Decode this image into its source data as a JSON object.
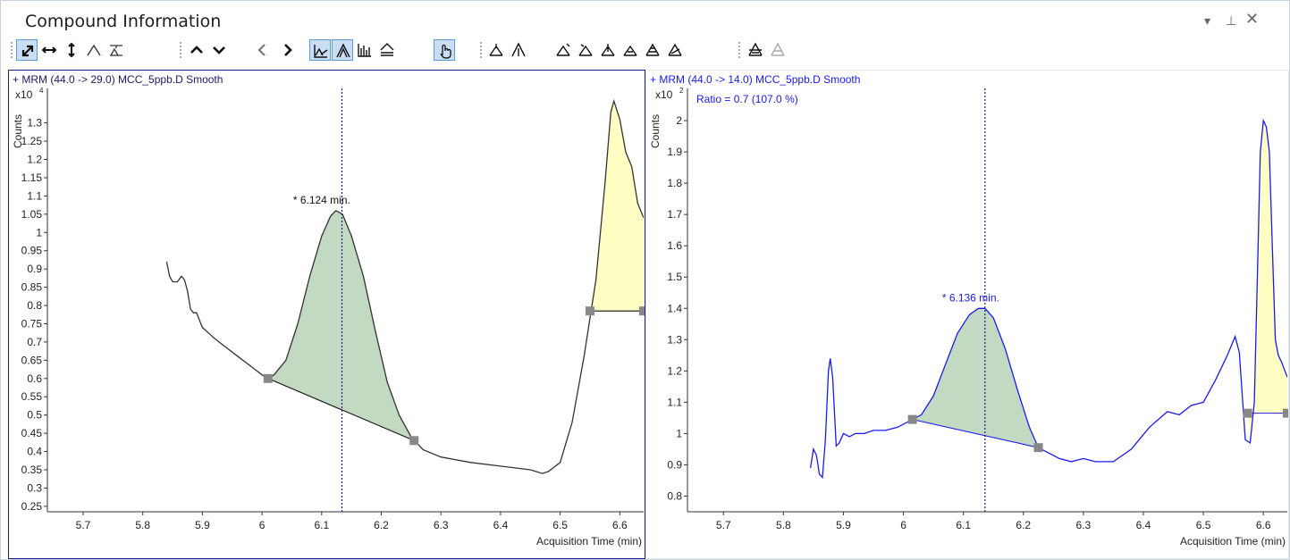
{
  "window": {
    "title": "Compound Information",
    "menu_icon": "dropdown-arrow-icon",
    "pin_icon": "pin-icon",
    "close_icon": "close-icon"
  },
  "toolbar": {
    "groups": [
      [
        "autoscale-both-icon",
        "autoscale-x-icon",
        "autoscale-y-icon",
        "peak-icon",
        "baseline-icon"
      ],
      [
        "previous-compound-icon",
        "next-compound-icon",
        "previous-peak-icon",
        "next-peak-icon",
        "integrate-icon",
        "overlay-peaks-icon",
        "spectrum-icon",
        "compare-icon",
        "manual-mode-icon"
      ],
      [
        "zero-peak-icon",
        "pick-peak-icon",
        "integrate-peak-icon",
        "split-peak-icon",
        "merge-peak-icon",
        "drop-peak-icon",
        "skim-peak-icon",
        "tangent-peak-icon"
      ],
      [
        "restore-icon",
        "delete-icon"
      ]
    ],
    "active": [
      "autoscale-both-icon",
      "integrate-icon",
      "overlay-peaks-icon",
      "manual-mode-icon"
    ]
  },
  "chart_data": [
    {
      "type": "line",
      "header": "+ MRM (44.0 -> 29.0) MCC_5ppb.D  Smooth",
      "ylabel": "Counts",
      "multiplier": "x10",
      "multiplier_exp": "4",
      "xlabel": "Acquisition Time (min)",
      "xlim": [
        5.64,
        6.64
      ],
      "xticks": [
        "5.7",
        "5.8",
        "5.9",
        "6",
        "6.1",
        "6.2",
        "6.3",
        "6.4",
        "6.5",
        "6.6"
      ],
      "ylim": [
        0.235,
        1.375
      ],
      "yticks": [
        "0.25",
        "0.3",
        "0.35",
        "0.4",
        "0.45",
        "0.5",
        "0.55",
        "0.6",
        "0.65",
        "0.7",
        "0.75",
        "0.8",
        "0.85",
        "0.9",
        "0.95",
        "1",
        "1.05",
        "1.1",
        "1.15",
        "1.2",
        "1.25",
        "1.3"
      ],
      "color": "#333333",
      "points": [
        [
          5.84,
          0.92
        ],
        [
          5.845,
          0.88
        ],
        [
          5.85,
          0.865
        ],
        [
          5.858,
          0.865
        ],
        [
          5.865,
          0.88
        ],
        [
          5.87,
          0.87
        ],
        [
          5.875,
          0.84
        ],
        [
          5.88,
          0.79
        ],
        [
          5.885,
          0.78
        ],
        [
          5.89,
          0.78
        ],
        [
          5.895,
          0.76
        ],
        [
          5.9,
          0.74
        ],
        [
          5.92,
          0.71
        ],
        [
          5.94,
          0.685
        ],
        [
          5.96,
          0.66
        ],
        [
          5.98,
          0.635
        ],
        [
          6.0,
          0.61
        ],
        [
          6.01,
          0.6
        ],
        [
          6.02,
          0.61
        ],
        [
          6.04,
          0.65
        ],
        [
          6.06,
          0.75
        ],
        [
          6.08,
          0.88
        ],
        [
          6.1,
          0.99
        ],
        [
          6.115,
          1.045
        ],
        [
          6.124,
          1.06
        ],
        [
          6.135,
          1.05
        ],
        [
          6.15,
          0.99
        ],
        [
          6.17,
          0.88
        ],
        [
          6.19,
          0.73
        ],
        [
          6.21,
          0.59
        ],
        [
          6.23,
          0.5
        ],
        [
          6.25,
          0.44
        ],
        [
          6.27,
          0.405
        ],
        [
          6.3,
          0.385
        ],
        [
          6.35,
          0.37
        ],
        [
          6.4,
          0.36
        ],
        [
          6.45,
          0.35
        ],
        [
          6.47,
          0.34
        ],
        [
          6.48,
          0.345
        ],
        [
          6.5,
          0.37
        ],
        [
          6.52,
          0.48
        ],
        [
          6.54,
          0.66
        ],
        [
          6.56,
          0.87
        ],
        [
          6.575,
          1.13
        ],
        [
          6.585,
          1.33
        ],
        [
          6.59,
          1.36
        ],
        [
          6.6,
          1.31
        ],
        [
          6.61,
          1.22
        ],
        [
          6.62,
          1.18
        ],
        [
          6.63,
          1.08
        ],
        [
          6.64,
          1.04
        ]
      ],
      "peaks": [
        {
          "start": [
            6.01,
            0.6
          ],
          "end": [
            6.255,
            0.43
          ],
          "fill": "#c2d9c2",
          "label": "* 6.124 min.",
          "apex_rt": 6.124,
          "apex_y": 1.06
        },
        {
          "start": [
            6.55,
            0.785
          ],
          "end": [
            6.64,
            0.785
          ],
          "fill": "#ffffc4"
        }
      ],
      "marker_rt": 6.134
    },
    {
      "type": "line",
      "header": "+ MRM (44.0 -> 14.0) MCC_5ppb.D  Smooth",
      "annotation": "Ratio = 0.7 (107.0 %)",
      "ylabel": "Counts",
      "multiplier": "x10",
      "multiplier_exp": "2",
      "xlabel": "Acquisition Time (min)",
      "xlim": [
        5.64,
        6.64
      ],
      "xticks": [
        "5.7",
        "5.8",
        "5.9",
        "6",
        "6.1",
        "6.2",
        "6.3",
        "6.4",
        "6.5",
        "6.6"
      ],
      "ylim": [
        0.75,
        2.08
      ],
      "yticks": [
        "0.8",
        "0.9",
        "1",
        "1.1",
        "1.2",
        "1.3",
        "1.4",
        "1.5",
        "1.6",
        "1.7",
        "1.8",
        "1.9",
        "2"
      ],
      "color": "#1a1aee",
      "points": [
        [
          5.845,
          0.89
        ],
        [
          5.85,
          0.95
        ],
        [
          5.855,
          0.93
        ],
        [
          5.86,
          0.87
        ],
        [
          5.865,
          0.86
        ],
        [
          5.87,
          0.98
        ],
        [
          5.875,
          1.2
        ],
        [
          5.878,
          1.24
        ],
        [
          5.882,
          1.18
        ],
        [
          5.888,
          0.96
        ],
        [
          5.893,
          0.97
        ],
        [
          5.9,
          1.0
        ],
        [
          5.91,
          0.99
        ],
        [
          5.92,
          1.0
        ],
        [
          5.935,
          1.0
        ],
        [
          5.95,
          1.01
        ],
        [
          5.97,
          1.01
        ],
        [
          5.99,
          1.02
        ],
        [
          6.01,
          1.04
        ],
        [
          6.015,
          1.045
        ],
        [
          6.03,
          1.06
        ],
        [
          6.05,
          1.12
        ],
        [
          6.07,
          1.22
        ],
        [
          6.09,
          1.32
        ],
        [
          6.11,
          1.38
        ],
        [
          6.125,
          1.4
        ],
        [
          6.136,
          1.4
        ],
        [
          6.15,
          1.37
        ],
        [
          6.17,
          1.27
        ],
        [
          6.19,
          1.14
        ],
        [
          6.21,
          1.02
        ],
        [
          6.225,
          0.955
        ],
        [
          6.24,
          0.94
        ],
        [
          6.26,
          0.92
        ],
        [
          6.28,
          0.91
        ],
        [
          6.3,
          0.92
        ],
        [
          6.32,
          0.91
        ],
        [
          6.35,
          0.91
        ],
        [
          6.38,
          0.95
        ],
        [
          6.41,
          1.02
        ],
        [
          6.44,
          1.07
        ],
        [
          6.46,
          1.06
        ],
        [
          6.48,
          1.09
        ],
        [
          6.5,
          1.1
        ],
        [
          6.52,
          1.17
        ],
        [
          6.54,
          1.25
        ],
        [
          6.553,
          1.31
        ],
        [
          6.56,
          1.26
        ],
        [
          6.57,
          0.98
        ],
        [
          6.578,
          0.97
        ],
        [
          6.585,
          1.1
        ],
        [
          6.59,
          1.5
        ],
        [
          6.595,
          1.9
        ],
        [
          6.6,
          2.0
        ],
        [
          6.605,
          1.98
        ],
        [
          6.61,
          1.9
        ],
        [
          6.615,
          1.6
        ],
        [
          6.62,
          1.3
        ],
        [
          6.625,
          1.25
        ],
        [
          6.63,
          1.23
        ],
        [
          6.64,
          1.18
        ]
      ],
      "peaks": [
        {
          "start": [
            6.015,
            1.045
          ],
          "end": [
            6.225,
            0.955
          ],
          "fill": "#c2d9c2",
          "label": "* 6.136 min.",
          "apex_rt": 6.136,
          "apex_y": 1.4
        },
        {
          "start": [
            6.574,
            1.065
          ],
          "end": [
            6.64,
            1.065
          ],
          "fill": "#ffffc4"
        }
      ],
      "marker_rt": 6.136
    }
  ]
}
